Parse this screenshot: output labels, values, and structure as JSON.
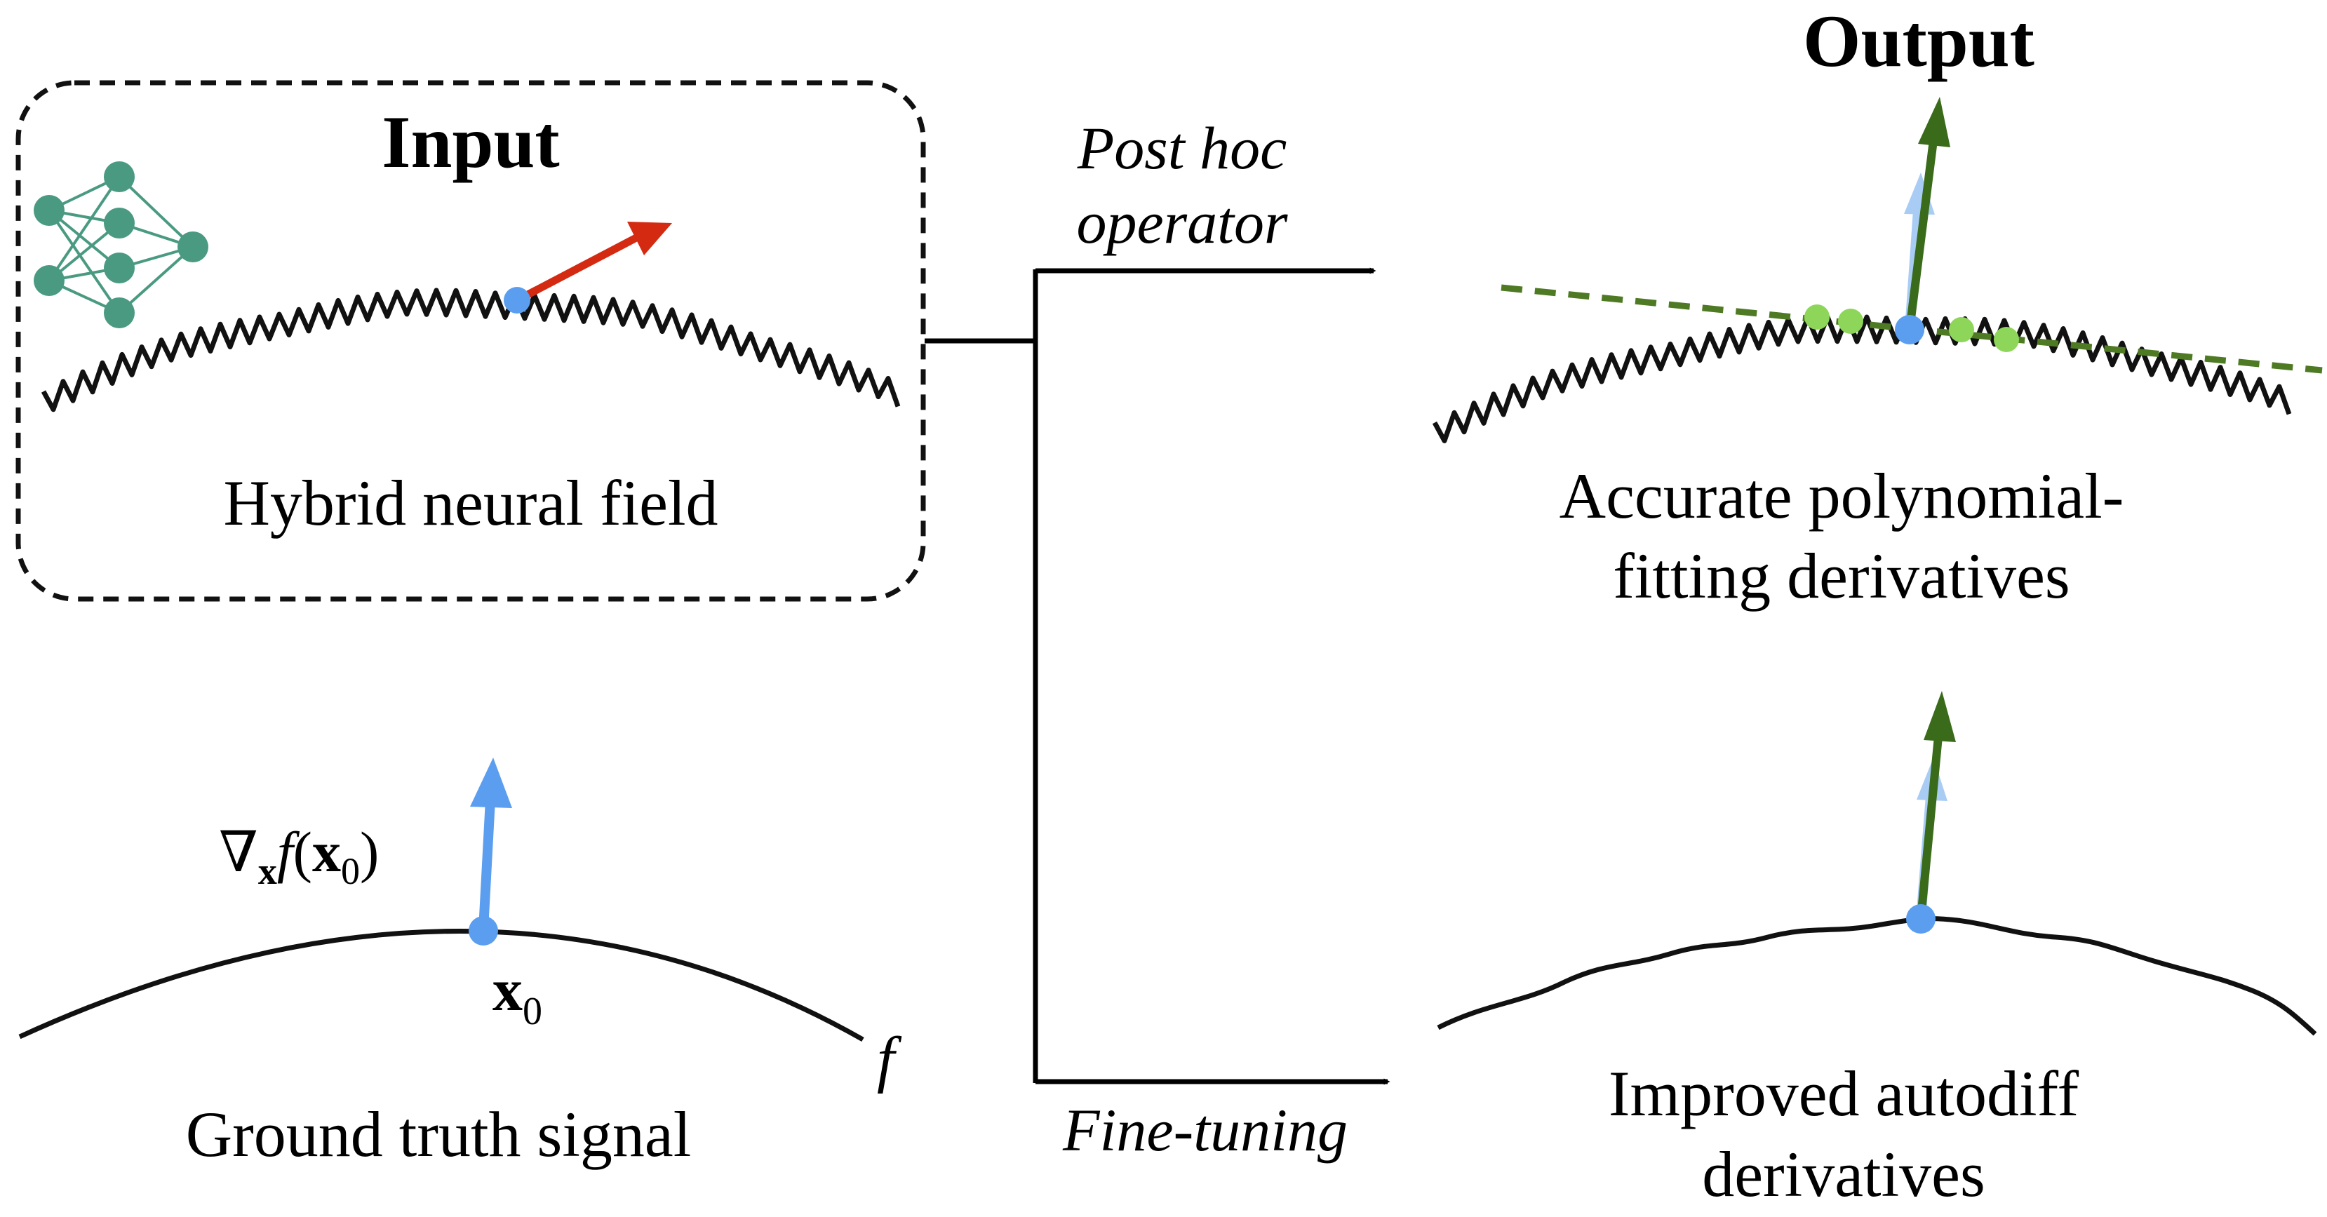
{
  "input_box": {
    "title": "Input",
    "caption": "Hybrid neural field"
  },
  "ground_truth": {
    "caption": "Ground truth signal",
    "function_label": "f",
    "point_label_base": "x",
    "point_label_sub": "0",
    "gradient_label": {
      "nabla": "∇",
      "subscript": "x",
      "fn": "f",
      "open_paren": "(",
      "arg": "x",
      "arg_sub": "0",
      "close_paren": ")"
    }
  },
  "pipeline": {
    "upper_branch_label_line1": "Post hoc",
    "upper_branch_label_line2": "operator",
    "lower_branch_label": "Fine-tuning"
  },
  "output": {
    "title": "Output",
    "upper_caption_line1": "Accurate polynomial-",
    "upper_caption_line2": "fitting derivatives",
    "lower_caption_line1": "Improved autodiff",
    "lower_caption_line2": "derivatives"
  },
  "colors": {
    "true_gradient": "#5b9ef0",
    "noisy_gradient": "#d42a12",
    "estimated_gradient": "#3a6b1a",
    "fit_line": "#4f7a24",
    "sample_points": "#8ed65a",
    "network_nodes": "#4a9a82",
    "curve": "#111111"
  }
}
